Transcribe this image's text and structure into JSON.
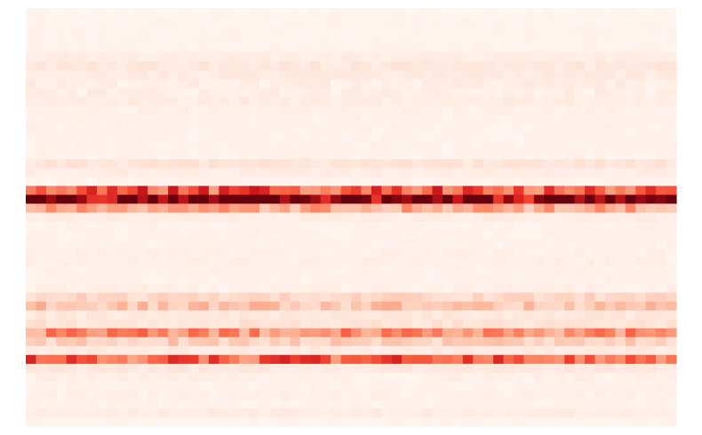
{
  "chart_data": {
    "type": "heatmap",
    "title": "",
    "xlabel": "",
    "ylabel": "",
    "colormap": "Reds",
    "color_scale": [
      "#fff5f0",
      "#fee0d2",
      "#fcbba1",
      "#fc9272",
      "#fb6a4a",
      "#ef3b2c",
      "#cb181d",
      "#a50f15",
      "#67000d"
    ],
    "value_range": [
      0,
      1
    ],
    "n_cols": 64,
    "n_rows": 47,
    "row_profile": [
      0.01,
      0.01,
      0.01,
      0.01,
      0.01,
      0.05,
      0.08,
      0.06,
      0.04,
      0.04,
      0.05,
      0.03,
      0.02,
      0.02,
      0.02,
      0.02,
      0.02,
      0.09,
      0.05,
      0.02,
      0.55,
      0.97,
      0.3,
      0.05,
      0.02,
      0.02,
      0.02,
      0.03,
      0.03,
      0.02,
      0.02,
      0.03,
      0.14,
      0.22,
      0.08,
      0.1,
      0.38,
      0.18,
      0.06,
      0.52,
      0.07,
      0.03,
      0.02,
      0.03,
      0.02,
      0.05,
      0.01
    ]
  }
}
